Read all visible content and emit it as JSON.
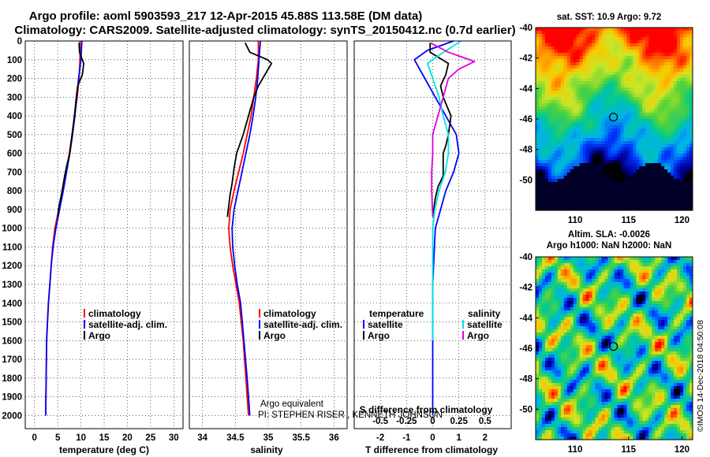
{
  "header": {
    "title_line1": "Argo profile: aoml 5903593_217 12-Apr-2015 45.88S 113.58E (DM data)",
    "title_line2": "Climatology: CARS2009. Satellite-adjusted climatology: synTS_20150412.nc (0.7d earlier)"
  },
  "colors": {
    "climatology": "#ff0000",
    "satellite": "#0000ff",
    "argo": "#000000",
    "sat_salinity": "#00e5e5",
    "argo_salinity": "#e000e0"
  },
  "chart_data": [
    {
      "id": "temperature",
      "type": "line",
      "xlabel": "temperature (deg C)",
      "xlim": [
        -2,
        32
      ],
      "xticks": [
        0,
        5,
        10,
        15,
        20,
        25,
        30
      ],
      "ylim": [
        2070,
        0
      ],
      "yticks": [
        0,
        100,
        200,
        300,
        400,
        500,
        600,
        700,
        800,
        900,
        1000,
        1100,
        1200,
        1300,
        1400,
        1500,
        1600,
        1700,
        1800,
        1900,
        2000
      ],
      "grid": true,
      "legend": {
        "placement": "lower-right",
        "entries": [
          "climatology",
          "satellite-adj. clim.",
          "Argo"
        ]
      },
      "series": [
        {
          "name": "climatology",
          "color": "#ff0000",
          "x": [
            9.8,
            9.8,
            9.6,
            9.2,
            8.6,
            8.1,
            7.5,
            6.8,
            6.0,
            5.2,
            4.4,
            3.9,
            3.6,
            3.3,
            3.0,
            2.8,
            2.6,
            2.5,
            2.4
          ],
          "y": [
            0,
            100,
            200,
            300,
            400,
            500,
            600,
            700,
            800,
            900,
            1000,
            1100,
            1200,
            1300,
            1400,
            1500,
            1600,
            1800,
            2000
          ]
        },
        {
          "name": "satellite-adj. clim.",
          "color": "#0000ff",
          "x": [
            10.2,
            10.0,
            9.5,
            9.1,
            8.7,
            8.2,
            7.6,
            6.9,
            6.2,
            5.4,
            4.6,
            4.0,
            3.6,
            3.3,
            3.0,
            2.8,
            2.6,
            2.5,
            2.4
          ],
          "y": [
            0,
            100,
            200,
            300,
            400,
            500,
            600,
            700,
            800,
            900,
            1000,
            1100,
            1200,
            1300,
            1400,
            1500,
            1600,
            1800,
            2000
          ]
        },
        {
          "name": "Argo",
          "color": "#000000",
          "x": [
            9.6,
            9.7,
            10.6,
            10.3,
            9.3,
            9.0,
            8.6,
            8.1,
            7.6,
            7.0,
            6.5,
            6.1,
            5.8,
            5.3,
            5.0
          ],
          "y": [
            10,
            60,
            120,
            180,
            240,
            300,
            400,
            500,
            600,
            660,
            720,
            780,
            820,
            880,
            940
          ]
        }
      ]
    },
    {
      "id": "salinity",
      "type": "line",
      "xlabel": "salinity",
      "xlim": [
        33.8,
        36.2
      ],
      "xticks": [
        34,
        34.5,
        35,
        35.5,
        36
      ],
      "ylim": [
        2070,
        0
      ],
      "grid": true,
      "legend": {
        "placement": "lower-right",
        "entries": [
          "climatology",
          "satellite-adj. clim.",
          "Argo"
        ]
      },
      "series": [
        {
          "name": "climatology",
          "color": "#ff0000",
          "x": [
            34.85,
            34.85,
            34.82,
            34.78,
            34.74,
            34.68,
            34.62,
            34.55,
            34.48,
            34.42,
            34.4,
            34.42,
            34.46,
            34.51,
            34.56,
            34.62,
            34.66,
            34.7
          ],
          "y": [
            0,
            100,
            200,
            300,
            400,
            500,
            600,
            700,
            800,
            900,
            1000,
            1100,
            1200,
            1300,
            1400,
            1600,
            1800,
            2000
          ]
        },
        {
          "name": "satellite-adj. clim.",
          "color": "#0000ff",
          "x": [
            34.88,
            34.86,
            34.84,
            34.81,
            34.77,
            34.72,
            34.66,
            34.6,
            34.54,
            34.48,
            34.45,
            34.46,
            34.49,
            34.53,
            34.58,
            34.63,
            34.68,
            34.72
          ],
          "y": [
            0,
            100,
            200,
            300,
            400,
            500,
            600,
            700,
            800,
            900,
            1000,
            1100,
            1200,
            1300,
            1400,
            1600,
            1800,
            2000
          ]
        },
        {
          "name": "Argo",
          "color": "#000000",
          "x": [
            34.65,
            34.72,
            34.99,
            35.05,
            34.95,
            34.85,
            34.78,
            34.7,
            34.62,
            34.52,
            34.48,
            34.45,
            34.42,
            34.4,
            34.38
          ],
          "y": [
            10,
            60,
            100,
            120,
            180,
            240,
            300,
            400,
            500,
            600,
            680,
            760,
            820,
            880,
            940
          ]
        }
      ],
      "annotations": [
        "Argo equivalent",
        "PI: STEPHEN RISER , KENNETH JOHNSON"
      ]
    },
    {
      "id": "difference",
      "type": "line",
      "xlabel": "T difference from climatology",
      "xlabel_top": "S difference from climatology",
      "xlim": [
        -3,
        3
      ],
      "xticks": [
        -2,
        -1,
        0,
        1,
        2
      ],
      "xticks_top": [
        -0.5,
        -0.25,
        0,
        0.25,
        0.5
      ],
      "ylim": [
        2070,
        0
      ],
      "grid": true,
      "legend": {
        "placement": "lower-center",
        "headers": [
          "temperature",
          "salinity"
        ],
        "entries": [
          "satellite",
          "Argo",
          "satellite",
          "Argo"
        ]
      },
      "series": [
        {
          "name": "satellite",
          "group": "temperature",
          "color": "#0000ff",
          "x": [
            0.8,
            -0.2,
            -0.7,
            -0.3,
            0.1,
            0.5,
            0.9,
            1.0,
            0.8,
            0.5,
            0.3,
            0.1,
            0.0,
            0.0,
            0.0
          ],
          "y": [
            0,
            50,
            100,
            200,
            300,
            400,
            500,
            600,
            700,
            800,
            900,
            1000,
            1300,
            1600,
            2000
          ]
        },
        {
          "name": "Argo",
          "group": "temperature",
          "color": "#000000",
          "x": [
            -0.1,
            -0.1,
            0.6,
            0.5,
            0.3,
            0.4,
            0.7,
            0.6,
            0.5,
            0.4,
            0.4,
            0.4,
            0.2,
            0.1,
            0.0
          ],
          "y": [
            10,
            60,
            120,
            180,
            240,
            300,
            400,
            500,
            560,
            600,
            660,
            720,
            780,
            840,
            940
          ]
        },
        {
          "name": "satellite",
          "group": "salinity",
          "color": "#00e5e5",
          "x": [
            0.27,
            0.05,
            -0.05,
            0.0,
            0.06,
            0.1,
            0.15,
            0.15,
            0.12,
            0.06,
            0.02,
            0.0,
            0.0,
            0.0
          ],
          "y": [
            0,
            80,
            120,
            200,
            300,
            400,
            500,
            600,
            700,
            800,
            900,
            1000,
            1300,
            1600
          ]
        },
        {
          "name": "Argo",
          "group": "salinity",
          "color": "#e000e0",
          "x": [
            -0.02,
            0.15,
            0.25,
            0.4,
            0.25,
            0.15,
            0.1,
            0.05,
            0.0,
            0.0,
            -0.01,
            -0.01,
            0.0
          ],
          "y": [
            10,
            60,
            80,
            110,
            150,
            200,
            300,
            400,
            500,
            600,
            700,
            800,
            940
          ]
        }
      ]
    },
    {
      "id": "sst_map",
      "type": "heatmap",
      "title": "sat. SST: 10.9 Argo: 9.72",
      "xlim": [
        106.3,
        121
      ],
      "xticks": [
        110,
        115,
        120
      ],
      "ylim": [
        -52,
        -40
      ],
      "yticks": [
        -40,
        -42,
        -44,
        -46,
        -48,
        -50
      ],
      "marker": {
        "lon": 113.58,
        "lat": -45.88
      }
    },
    {
      "id": "sla_map",
      "type": "heatmap",
      "title_line1": "Altim. SLA: -0.0026",
      "title_line2": "Argo h1000: NaN h2000: NaN",
      "xlim": [
        106.3,
        121
      ],
      "xticks": [
        110,
        115,
        120
      ],
      "ylim": [
        -52,
        -40
      ],
      "yticks": [
        -40,
        -42,
        -44,
        -46,
        -48,
        -50
      ],
      "marker": {
        "lon": 113.58,
        "lat": -45.88
      }
    }
  ],
  "watermark": "©IMOS 14-Dec-2018 04:50:08"
}
